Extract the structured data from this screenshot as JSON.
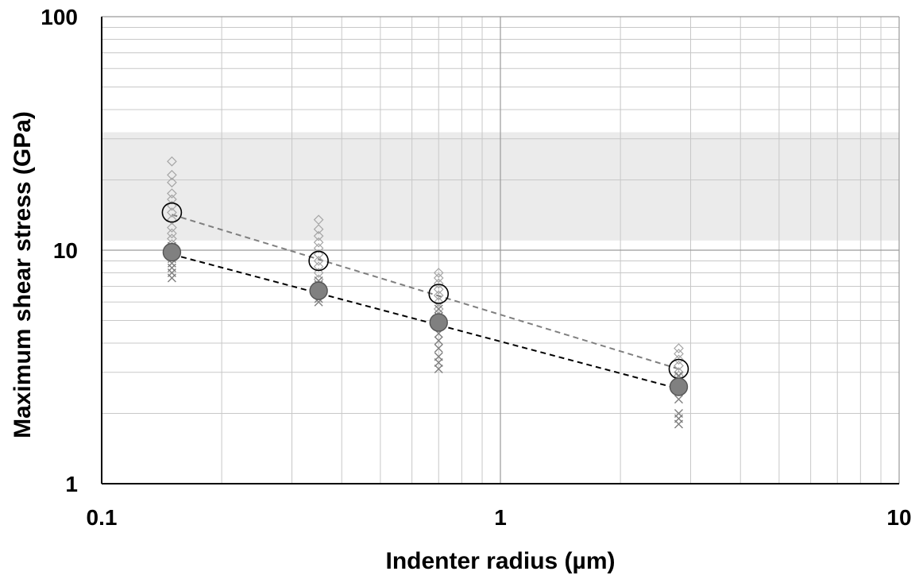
{
  "chart_data": {
    "type": "scatter",
    "title": "",
    "xlabel": "Indenter radius (µm)",
    "ylabel": "Maximum shear stress (GPa)",
    "x_scale": "log",
    "y_scale": "log",
    "xlim": [
      0.1,
      10
    ],
    "ylim": [
      1,
      100
    ],
    "x_ticks": [
      0.1,
      1,
      10
    ],
    "x_tick_labels": [
      "0.1",
      "1",
      "10"
    ],
    "y_ticks": [
      1,
      10,
      100
    ],
    "y_tick_labels": [
      "1",
      "10",
      "100"
    ],
    "grid": true,
    "legend": "none",
    "shaded_band": {
      "y_from": 11,
      "y_to": 32,
      "color": "#ebebeb"
    },
    "series": [
      {
        "marker": "diamond-open",
        "color": "#a6a6a6",
        "points": [
          [
            0.15,
            24
          ],
          [
            0.15,
            21
          ],
          [
            0.15,
            19.5
          ],
          [
            0.15,
            17.5
          ],
          [
            0.15,
            16.5
          ],
          [
            0.15,
            15.5
          ],
          [
            0.15,
            14.5
          ],
          [
            0.15,
            13.5
          ],
          [
            0.15,
            12.5
          ],
          [
            0.15,
            11.8
          ],
          [
            0.15,
            11.2
          ],
          [
            0.15,
            10.6
          ],
          [
            0.15,
            10
          ],
          [
            0.15,
            9.5
          ],
          [
            0.35,
            13.5
          ],
          [
            0.35,
            12.3
          ],
          [
            0.35,
            11.5
          ],
          [
            0.35,
            10.8
          ],
          [
            0.35,
            10.2
          ],
          [
            0.35,
            9.6
          ],
          [
            0.35,
            9
          ],
          [
            0.35,
            8.5
          ],
          [
            0.35,
            8
          ],
          [
            0.35,
            7.5
          ],
          [
            0.7,
            8
          ],
          [
            0.7,
            7.6
          ],
          [
            0.7,
            7.2
          ],
          [
            0.7,
            6.8
          ],
          [
            0.7,
            6.4
          ],
          [
            0.7,
            6
          ],
          [
            0.7,
            5.6
          ],
          [
            0.7,
            5.2
          ],
          [
            2.8,
            3.8
          ],
          [
            2.8,
            3.6
          ],
          [
            2.8,
            3.4
          ],
          [
            2.8,
            3.2
          ],
          [
            2.8,
            3
          ],
          [
            2.8,
            2.9
          ]
        ]
      },
      {
        "marker": "x",
        "color": "#7f7f7f",
        "points": [
          [
            0.15,
            10.4
          ],
          [
            0.15,
            10
          ],
          [
            0.15,
            9.6
          ],
          [
            0.15,
            9.2
          ],
          [
            0.15,
            8.8
          ],
          [
            0.15,
            8.4
          ],
          [
            0.15,
            8
          ],
          [
            0.15,
            7.6
          ],
          [
            0.35,
            7.4
          ],
          [
            0.35,
            7.1
          ],
          [
            0.35,
            6.8
          ],
          [
            0.35,
            6.5
          ],
          [
            0.35,
            6.2
          ],
          [
            0.35,
            6
          ],
          [
            0.7,
            5.6
          ],
          [
            0.7,
            5.2
          ],
          [
            0.7,
            4.8
          ],
          [
            0.7,
            4.4
          ],
          [
            0.7,
            4.1
          ],
          [
            0.7,
            3.8
          ],
          [
            0.7,
            3.5
          ],
          [
            0.7,
            3.3
          ],
          [
            0.7,
            3.1
          ],
          [
            2.8,
            2.9
          ],
          [
            2.8,
            2.7
          ],
          [
            2.8,
            2.5
          ],
          [
            2.8,
            2.3
          ],
          [
            2.8,
            2
          ],
          [
            2.8,
            1.9
          ],
          [
            2.8,
            1.8
          ]
        ]
      },
      {
        "marker": "circle-open-large",
        "color": "#000000",
        "points": [
          [
            0.15,
            14.5
          ],
          [
            0.35,
            9
          ],
          [
            0.7,
            6.5
          ],
          [
            2.8,
            3.1
          ]
        ]
      },
      {
        "marker": "circle-filled-large",
        "color": "#808080",
        "points": [
          [
            0.15,
            9.8
          ],
          [
            0.35,
            6.7
          ],
          [
            0.7,
            4.9
          ],
          [
            2.8,
            2.6
          ]
        ]
      }
    ],
    "trendlines": [
      {
        "style": "dashed",
        "color": "#7f7f7f",
        "points": [
          [
            0.15,
            14.2
          ],
          [
            2.8,
            3.1
          ]
        ]
      },
      {
        "style": "dashed",
        "color": "#000000",
        "points": [
          [
            0.15,
            9.6
          ],
          [
            2.8,
            2.55
          ]
        ]
      }
    ]
  }
}
